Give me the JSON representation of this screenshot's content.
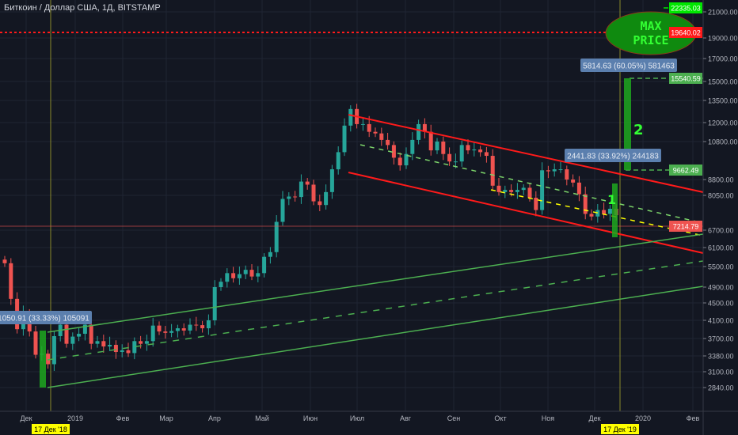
{
  "header": {
    "title": "Биткоин / Доллар США, 1Д, BITSTAMP"
  },
  "colors": {
    "background": "#131722",
    "up": "#26a69a",
    "down": "#ef5350",
    "channel_red": "#ff1a1a",
    "channel_green": "#4caf50",
    "highlight": "#ffff00"
  },
  "chart_data": {
    "type": "candlestick",
    "title": "Биткоин / Доллар США, 1Д, BITSTAMP",
    "y_scale": "log",
    "grid": true,
    "y_ticks": [
      21000,
      19000,
      17000,
      15000,
      13500,
      12000,
      10800,
      8800,
      8050,
      6700,
      6100,
      5500,
      4900,
      4500,
      4100,
      3700,
      3380,
      3100,
      2840
    ],
    "x_ticks": [
      "Дек",
      "2019",
      "Фев",
      "Мар",
      "Апр",
      "Май",
      "Июн",
      "Июл",
      "Авг",
      "Сен",
      "Окт",
      "Ноя",
      "Дек",
      "2020",
      "Фев"
    ],
    "x_markers": [
      "17 Дек '18",
      "17 Дек '19"
    ],
    "closes": [
      5600,
      4600,
      3900,
      4250,
      3850,
      3400,
      3420,
      3230,
      3750,
      4000,
      3600,
      3740,
      3800,
      4000,
      3600,
      3650,
      3550,
      3580,
      3450,
      3480,
      3430,
      3650,
      3600,
      3650,
      3980,
      3850,
      3820,
      3860,
      3920,
      3870,
      4000,
      3990,
      3920,
      4100,
      4900,
      5050,
      5300,
      5150,
      5270,
      5400,
      5200,
      5300,
      5800,
      5950,
      7000,
      7900,
      8000,
      7980,
      8700,
      8550,
      7800,
      7650,
      8200,
      9300,
      10200,
      11800,
      12900,
      11900,
      11900,
      11400,
      11300,
      10900,
      10600,
      9900,
      9500,
      10100,
      10900,
      11900,
      11400,
      10300,
      10800,
      10100,
      9700,
      9700,
      10600,
      10300,
      10350,
      10200,
      10000,
      8500,
      8200,
      8300,
      8200,
      8300,
      8400,
      7950,
      7450,
      9250,
      9200,
      9300,
      9300,
      8800,
      8650,
      8100,
      7300,
      7200,
      7450,
      7300,
      7500,
      7250
    ],
    "price_labels": [
      {
        "value": "22335.03",
        "color": "#00e600"
      },
      {
        "value": "19640.02",
        "color": "#ff1a1a"
      },
      {
        "value": "15540.59",
        "color": "#4caf50"
      },
      {
        "value": "9662.49",
        "color": "#4caf50"
      },
      {
        "value": "7214.79",
        "color": "#ef5350"
      }
    ],
    "annotations": {
      "measure_1": "1050.91 (33.33%) 105091",
      "measure_2": "2441.83 (33.92%) 244183",
      "measure_3": "5814.63 (60.05%) 581463",
      "label_1": "1",
      "label_2": "2",
      "max_price_line1": "MAX",
      "max_price_line2": "PRICE"
    }
  }
}
